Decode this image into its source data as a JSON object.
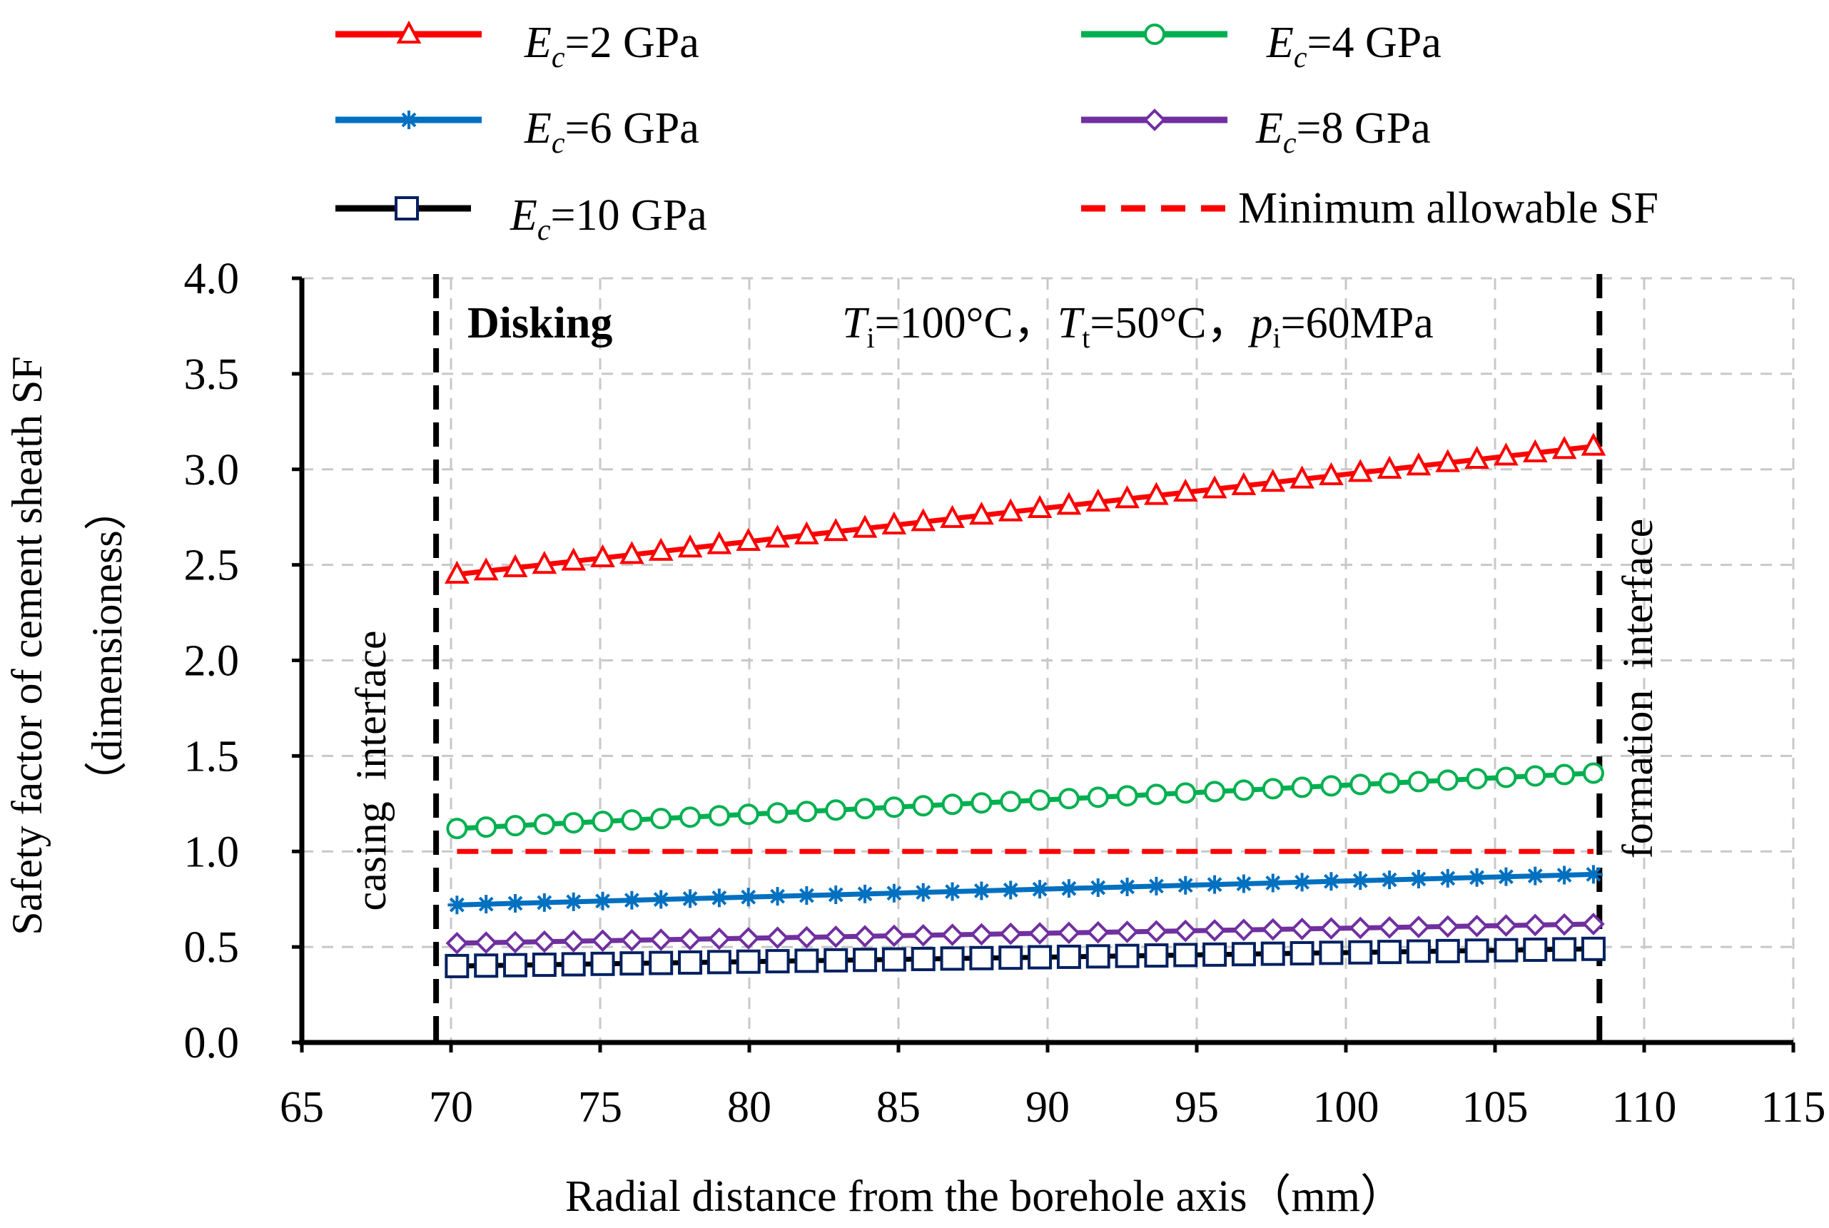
{
  "chart_data": {
    "type": "line",
    "title": "",
    "xlabel": "Radial distance from  the borehole axis（mm）",
    "ylabel_line1": "Safety factor of cement sheath SF",
    "ylabel_line2": "（dimensioness）",
    "xlim": [
      65,
      115
    ],
    "ylim": [
      0,
      4
    ],
    "x_ticks": [
      65,
      70,
      75,
      80,
      85,
      90,
      95,
      100,
      105,
      110,
      115
    ],
    "y_ticks": [
      "0.0",
      "0.5",
      "1.0",
      "1.5",
      "2.0",
      "2.5",
      "3.0",
      "3.5",
      "4.0"
    ],
    "grid": true,
    "legend_position": "top",
    "x_start": 70.2,
    "x_end": 108.3,
    "marker_count": 40,
    "series": [
      {
        "name": "Ec=2 GPa",
        "label_sub": "c",
        "label_value": "=2 GPa",
        "color": "#ff0000",
        "marker": "triangle",
        "y_start": 2.45,
        "y_end": 3.12
      },
      {
        "name": "Ec=4 GPa",
        "label_sub": "c",
        "label_value": "=4 GPa",
        "color": "#00b050",
        "marker": "circle",
        "y_start": 1.12,
        "y_end": 1.41
      },
      {
        "name": "Ec=6 GPa",
        "label_sub": "c",
        "label_value": "=6 GPa",
        "color": "#0070c0",
        "marker": "asterisk",
        "y_start": 0.72,
        "y_end": 0.88
      },
      {
        "name": "Ec=8 GPa",
        "label_sub": "c",
        "label_value": "=8 GPa",
        "color": "#7030a0",
        "marker": "diamond",
        "y_start": 0.52,
        "y_end": 0.62
      },
      {
        "name": "Ec=10 GPa",
        "label_sub": "c",
        "label_value": "=10 GPa",
        "color": "#000000",
        "marker_color": "#002060",
        "marker": "square",
        "y_start": 0.4,
        "y_end": 0.49
      }
    ],
    "reference_line": {
      "name": "Minimum allowable SF",
      "y": 1.0,
      "color": "#ff0000",
      "x_start": 70.2,
      "x_end": 108.3
    },
    "vertical_lines": [
      {
        "x": 69.5,
        "label": "casing  interface"
      },
      {
        "x": 108.5,
        "label": "formation  interface"
      }
    ],
    "annotations": {
      "case_label": "Disking",
      "conditions": [
        {
          "var": "T",
          "sub": "i",
          "value": "=100°C"
        },
        {
          "var": "T",
          "sub": "t",
          "value": "=50°C"
        },
        {
          "var": "p",
          "sub": "i",
          "value": "=60MPa"
        }
      ],
      "separator": "，"
    },
    "legend_var": "E"
  },
  "colors": {
    "axis": "#000000",
    "grid": "#c8c8c8"
  }
}
